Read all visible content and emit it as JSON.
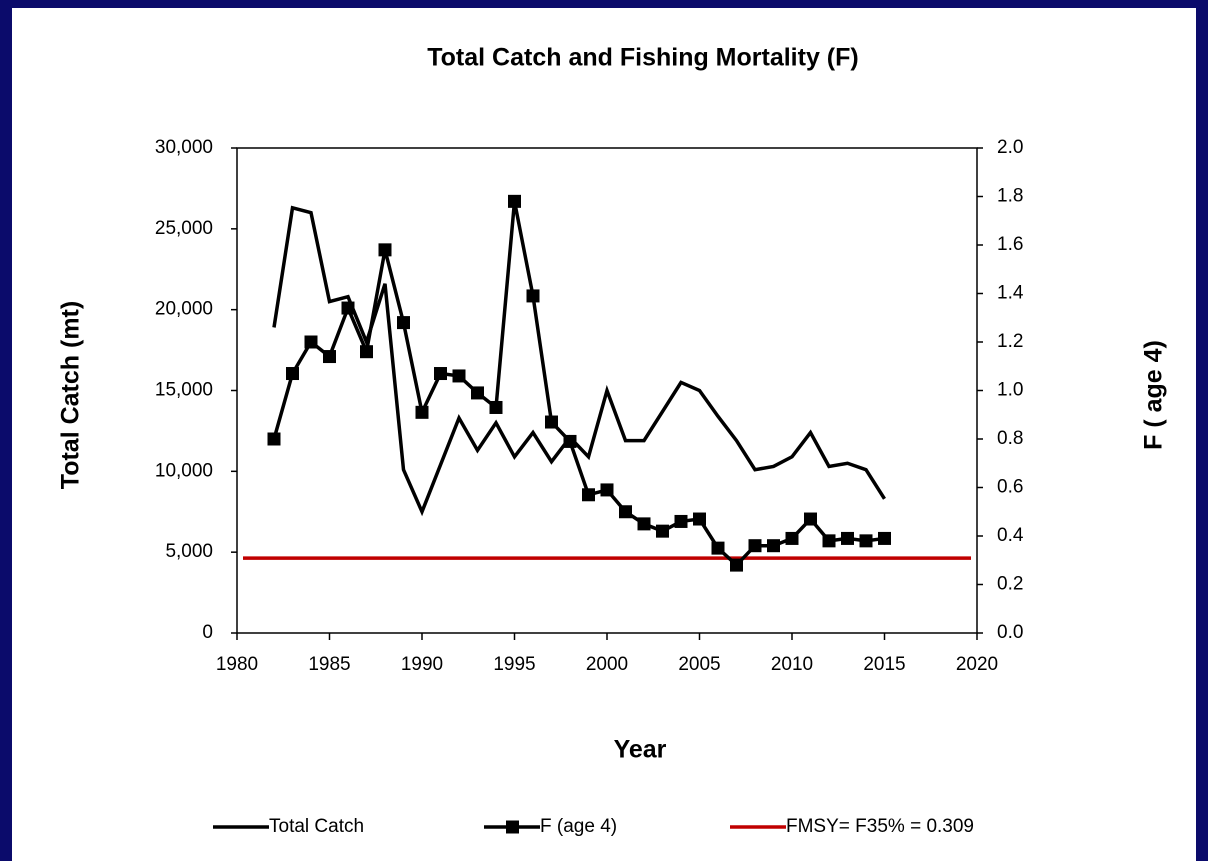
{
  "chart_data": {
    "type": "line",
    "title": "Total Catch and Fishing Mortality (F)",
    "xlabel": "Year",
    "ylabel": "Total Catch (mt)",
    "y2label": "F ( age 4)",
    "x": [
      1982,
      1983,
      1984,
      1985,
      1986,
      1987,
      1988,
      1989,
      1990,
      1991,
      1992,
      1993,
      1994,
      1995,
      1996,
      1997,
      1998,
      1999,
      2000,
      2001,
      2002,
      2003,
      2004,
      2005,
      2006,
      2007,
      2008,
      2009,
      2010,
      2011,
      2012,
      2013,
      2014,
      2015
    ],
    "series": [
      {
        "name": "Total Catch",
        "color": "#000000",
        "marker": "none",
        "values": [
          18900,
          26300,
          26000,
          20500,
          20800,
          18000,
          21600,
          10100,
          7500,
          10400,
          13300,
          11300,
          13000,
          10900,
          12400,
          10600,
          12100,
          10900,
          15000,
          11900,
          11900,
          13700,
          15500,
          15000,
          13400,
          11900,
          10100,
          10300,
          10900,
          12400,
          10300,
          10500,
          10100,
          8300
        ]
      },
      {
        "name": "F (age 4)",
        "color": "#000000",
        "marker": "square",
        "axis": "y2",
        "values": [
          0.8,
          1.07,
          1.2,
          1.14,
          1.34,
          1.16,
          1.58,
          1.28,
          0.91,
          1.07,
          1.06,
          0.99,
          0.93,
          1.78,
          1.39,
          0.87,
          0.79,
          0.57,
          0.59,
          0.5,
          0.45,
          0.42,
          0.46,
          0.47,
          0.35,
          0.28,
          0.36,
          0.36,
          0.39,
          0.47,
          0.38,
          0.39,
          0.38,
          0.39
        ]
      }
    ],
    "reference_line": {
      "name": "FMSY= F35% = 0.309",
      "value": 0.309,
      "color": "#c00000",
      "axis": "y2"
    },
    "xlim": [
      1980,
      2020
    ],
    "xticks": [
      1980,
      1985,
      1990,
      1995,
      2000,
      2005,
      2010,
      2015,
      2020
    ],
    "ylim": [
      0,
      30000
    ],
    "yticks": [
      0,
      {
        "value": 5000,
        "label": "5,000"
      },
      {
        "value": 10000,
        "label": "10,000"
      },
      {
        "value": 15000,
        "label": "15,000"
      },
      {
        "value": 20000,
        "label": "20,000"
      },
      {
        "value": 25000,
        "label": "25,000"
      },
      {
        "value": 30000,
        "label": "30,000"
      }
    ],
    "y2lim": [
      0,
      2
    ],
    "y2ticks": [
      {
        "value": 0,
        "label": "0.0"
      },
      0.2,
      0.4,
      0.6,
      0.8,
      {
        "value": 1,
        "label": "1.0"
      },
      1.2,
      1.4,
      1.6,
      1.8,
      {
        "value": 2,
        "label": "2.0"
      }
    ],
    "legend": "bottom",
    "grid": false
  }
}
